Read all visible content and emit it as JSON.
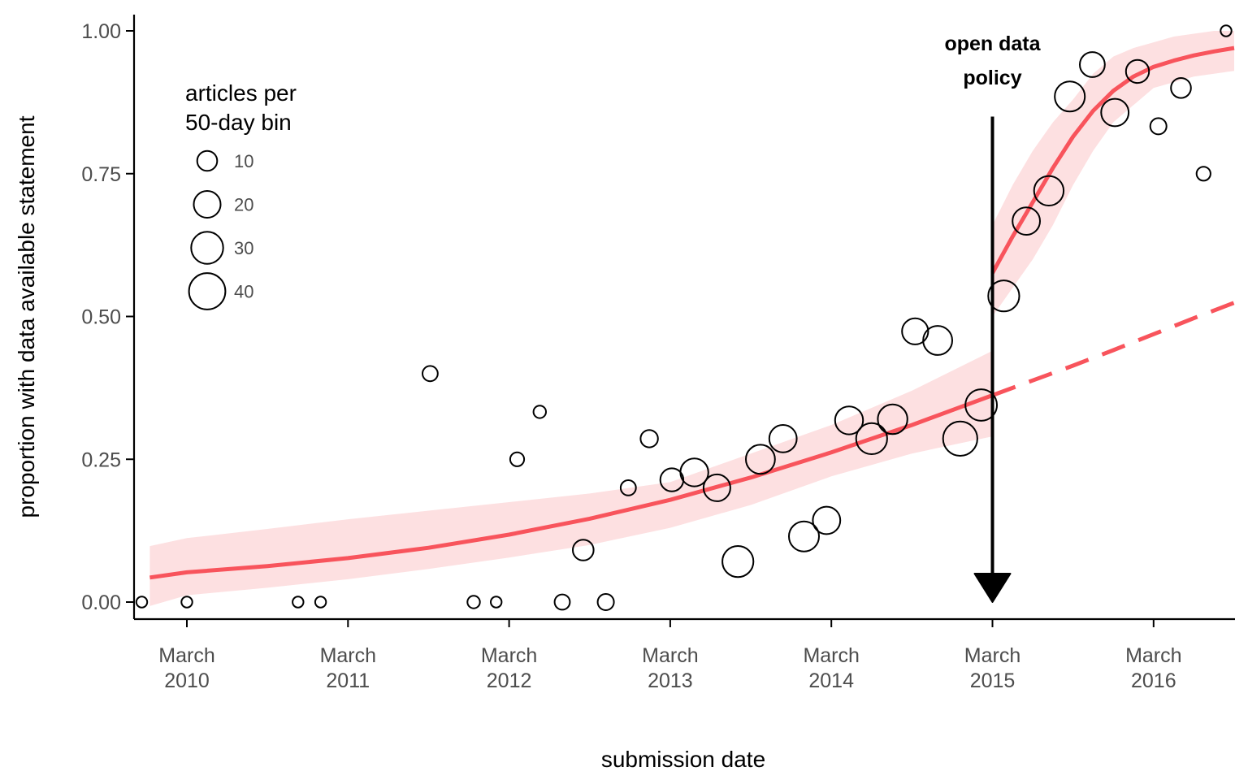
{
  "chart_data": {
    "type": "scatter",
    "title": "",
    "xlabel": "submission date",
    "ylabel": "proportion with data available statement",
    "xlim": [
      2009.7,
      2016.55
    ],
    "ylim": [
      0,
      1
    ],
    "x_ticks": [
      {
        "value": 2010,
        "line1": "March",
        "line2": "2010"
      },
      {
        "value": 2011,
        "line1": "March",
        "line2": "2011"
      },
      {
        "value": 2012,
        "line1": "March",
        "line2": "2012"
      },
      {
        "value": 2013,
        "line1": "March",
        "line2": "2013"
      },
      {
        "value": 2014,
        "line1": "March",
        "line2": "2014"
      },
      {
        "value": 2015,
        "line1": "March",
        "line2": "2015"
      },
      {
        "value": 2016,
        "line1": "March",
        "line2": "2016"
      }
    ],
    "y_ticks": [
      {
        "value": 0,
        "label": "0.00"
      },
      {
        "value": 0.25,
        "label": "0.25"
      },
      {
        "value": 0.5,
        "label": "0.50"
      },
      {
        "value": 0.75,
        "label": "0.75"
      },
      {
        "value": 1,
        "label": "1.00"
      }
    ],
    "legend": {
      "title_line1": "articles per",
      "title_line2": "50-day bin",
      "placement": "top-left",
      "sizes": [
        {
          "value": 10,
          "label": "10"
        },
        {
          "value": 20,
          "label": "20"
        },
        {
          "value": 30,
          "label": "30"
        },
        {
          "value": 40,
          "label": "40"
        }
      ]
    },
    "annotation": {
      "line1": "open data",
      "line2": "policy",
      "x": 2015,
      "y_top": 0.85,
      "y_bottom": 0
    },
    "points": [
      {
        "x": 2009.72,
        "y": 0.0,
        "n": 2
      },
      {
        "x": 2010.0,
        "y": 0.0,
        "n": 2
      },
      {
        "x": 2010.69,
        "y": 0.0,
        "n": 2
      },
      {
        "x": 2010.83,
        "y": 0.0,
        "n": 2
      },
      {
        "x": 2011.51,
        "y": 0.4,
        "n": 5
      },
      {
        "x": 2011.78,
        "y": 0.0,
        "n": 3
      },
      {
        "x": 2011.92,
        "y": 0.0,
        "n": 2
      },
      {
        "x": 2012.05,
        "y": 0.25,
        "n": 4
      },
      {
        "x": 2012.19,
        "y": 0.333,
        "n": 3
      },
      {
        "x": 2012.33,
        "y": 0.0,
        "n": 5
      },
      {
        "x": 2012.46,
        "y": 0.091,
        "n": 11
      },
      {
        "x": 2012.6,
        "y": 0.0,
        "n": 6
      },
      {
        "x": 2012.74,
        "y": 0.2,
        "n": 5
      },
      {
        "x": 2012.87,
        "y": 0.286,
        "n": 7
      },
      {
        "x": 2013.01,
        "y": 0.214,
        "n": 14
      },
      {
        "x": 2013.15,
        "y": 0.227,
        "n": 22
      },
      {
        "x": 2013.29,
        "y": 0.2,
        "n": 20
      },
      {
        "x": 2013.42,
        "y": 0.071,
        "n": 28
      },
      {
        "x": 2013.56,
        "y": 0.25,
        "n": 24
      },
      {
        "x": 2013.7,
        "y": 0.286,
        "n": 21
      },
      {
        "x": 2013.83,
        "y": 0.115,
        "n": 26
      },
      {
        "x": 2013.97,
        "y": 0.143,
        "n": 21
      },
      {
        "x": 2014.11,
        "y": 0.318,
        "n": 22
      },
      {
        "x": 2014.25,
        "y": 0.286,
        "n": 28
      },
      {
        "x": 2014.38,
        "y": 0.32,
        "n": 25
      },
      {
        "x": 2014.52,
        "y": 0.474,
        "n": 19
      },
      {
        "x": 2014.66,
        "y": 0.458,
        "n": 24
      },
      {
        "x": 2014.8,
        "y": 0.286,
        "n": 35
      },
      {
        "x": 2014.93,
        "y": 0.345,
        "n": 29
      },
      {
        "x": 2015.07,
        "y": 0.536,
        "n": 28
      },
      {
        "x": 2015.21,
        "y": 0.667,
        "n": 21
      },
      {
        "x": 2015.35,
        "y": 0.72,
        "n": 25
      },
      {
        "x": 2015.48,
        "y": 0.885,
        "n": 26
      },
      {
        "x": 2015.62,
        "y": 0.941,
        "n": 17
      },
      {
        "x": 2015.76,
        "y": 0.857,
        "n": 21
      },
      {
        "x": 2015.9,
        "y": 0.929,
        "n": 14
      },
      {
        "x": 2016.03,
        "y": 0.833,
        "n": 6
      },
      {
        "x": 2016.17,
        "y": 0.9,
        "n": 10
      },
      {
        "x": 2016.31,
        "y": 0.75,
        "n": 4
      },
      {
        "x": 2016.45,
        "y": 1.0,
        "n": 2
      }
    ],
    "fit_pre": {
      "x": [
        2009.77,
        2010.0,
        2010.5,
        2011.0,
        2011.5,
        2012.0,
        2012.5,
        2013.0,
        2013.5,
        2014.0,
        2014.5,
        2015.0
      ],
      "y": [
        0.043,
        0.052,
        0.063,
        0.077,
        0.095,
        0.118,
        0.146,
        0.179,
        0.218,
        0.262,
        0.31,
        0.362
      ],
      "lower": [
        -0.007,
        0.012,
        0.025,
        0.04,
        0.058,
        0.078,
        0.1,
        0.13,
        0.17,
        0.22,
        0.26,
        0.29
      ],
      "upper": [
        0.098,
        0.112,
        0.128,
        0.145,
        0.16,
        0.175,
        0.19,
        0.21,
        0.26,
        0.31,
        0.37,
        0.44
      ]
    },
    "fit_counterfactual": {
      "x": [
        2015.0,
        2015.25,
        2015.5,
        2015.75,
        2016.0,
        2016.25,
        2016.5
      ],
      "y": [
        0.362,
        0.388,
        0.414,
        0.441,
        0.469,
        0.497,
        0.524
      ]
    },
    "fit_post": {
      "x": [
        2015.0,
        2015.125,
        2015.25,
        2015.375,
        2015.5,
        2015.625,
        2015.75,
        2015.875,
        2016.0,
        2016.125,
        2016.25,
        2016.375,
        2016.5
      ],
      "y": [
        0.576,
        0.64,
        0.7,
        0.76,
        0.815,
        0.86,
        0.895,
        0.92,
        0.937,
        0.948,
        0.957,
        0.964,
        0.97
      ],
      "lower": [
        0.5,
        0.55,
        0.6,
        0.66,
        0.73,
        0.79,
        0.84,
        0.87,
        0.9,
        0.91,
        0.92,
        0.925,
        0.93
      ],
      "upper": [
        0.66,
        0.73,
        0.79,
        0.84,
        0.88,
        0.925,
        0.955,
        0.97,
        0.98,
        0.99,
        0.995,
        1.0,
        1.0
      ]
    },
    "colors": {
      "fit_line": "#f8545c",
      "ribbon": "#fde0e1",
      "axis": "#000000",
      "point_stroke": "#000000"
    }
  }
}
